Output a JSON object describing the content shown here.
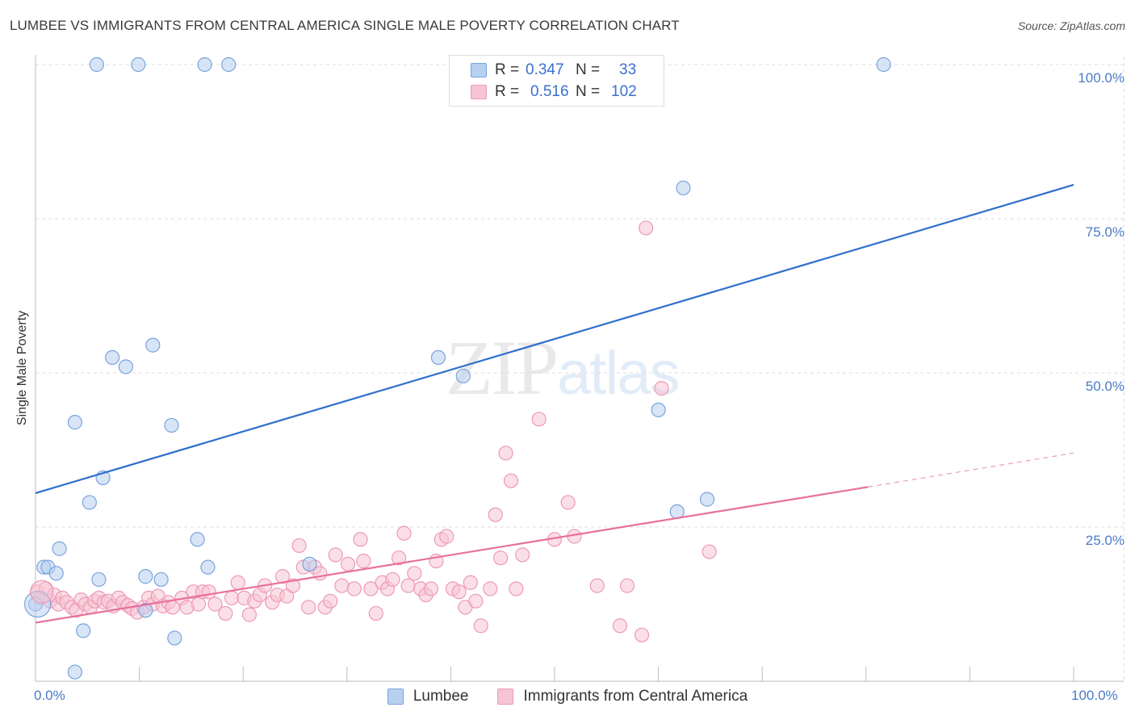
{
  "title": "LUMBEE VS IMMIGRANTS FROM CENTRAL AMERICA SINGLE MALE POVERTY CORRELATION CHART",
  "source": "Source: ZipAtlas.com",
  "watermark": {
    "zip": "ZIP",
    "atlas": "atlas"
  },
  "legend": {
    "r_label": "R =",
    "n_label": "N =",
    "rows": [
      {
        "r": "0.347",
        "n": "33"
      },
      {
        "r": "0.516",
        "n": "102"
      }
    ]
  },
  "colors": {
    "blue_fill": "#b8d0f0",
    "blue_stroke": "#7aa3de",
    "blue_line": "#2f6fcc",
    "pink_fill": "#f7c4d4",
    "pink_stroke": "#ec9ab5",
    "pink_line": "#e8709a",
    "grid": "#dedede",
    "tick_text": "#4a7bc8"
  },
  "chart_data": {
    "type": "scatter",
    "title": "LUMBEE VS IMMIGRANTS FROM CENTRAL AMERICA SINGLE MALE POVERTY CORRELATION CHART",
    "xlabel": "",
    "ylabel": "Single Male Poverty",
    "xlim": [
      0,
      100
    ],
    "ylim": [
      0,
      100
    ],
    "x_ticks": [
      "0.0%",
      "100.0%"
    ],
    "y_ticks": [
      {
        "value": 25,
        "label": "25.0%"
      },
      {
        "value": 50,
        "label": "50.0%"
      },
      {
        "value": 75,
        "label": "75.0%"
      },
      {
        "value": 100,
        "label": "100.0%"
      }
    ],
    "grid": true,
    "legend_position": "top-center",
    "series": [
      {
        "name": "Lumbee",
        "r": 0.347,
        "n": 33,
        "trend": {
          "x": [
            0,
            100
          ],
          "y": [
            30.5,
            80.5
          ]
        },
        "points": [
          [
            0,
            12.5
          ],
          [
            0.8,
            18.5
          ],
          [
            1.2,
            18.5
          ],
          [
            2,
            17.5
          ],
          [
            2.3,
            21.5
          ],
          [
            3.8,
            1.5
          ],
          [
            3.8,
            42
          ],
          [
            4.6,
            8.2
          ],
          [
            5.2,
            29
          ],
          [
            5.9,
            100
          ],
          [
            6.1,
            16.5
          ],
          [
            6.5,
            33
          ],
          [
            7.4,
            52.5
          ],
          [
            8.7,
            51
          ],
          [
            9.9,
            100
          ],
          [
            10.6,
            11.5
          ],
          [
            10.6,
            17
          ],
          [
            11.3,
            54.5
          ],
          [
            12.1,
            16.5
          ],
          [
            13.1,
            41.5
          ],
          [
            13.4,
            7
          ],
          [
            15.6,
            23
          ],
          [
            16.3,
            100
          ],
          [
            16.6,
            18.5
          ],
          [
            18.6,
            100
          ],
          [
            26.4,
            19
          ],
          [
            38.8,
            52.5
          ],
          [
            41.2,
            49.5
          ],
          [
            60.0,
            44
          ],
          [
            61.8,
            27.5
          ],
          [
            62.4,
            80
          ],
          [
            64.7,
            29.5
          ],
          [
            81.7,
            100
          ]
        ]
      },
      {
        "name": "Immigrants from Central America",
        "r": 0.516,
        "n": 102,
        "trend": {
          "x": [
            0,
            80.2
          ],
          "y": [
            9.5,
            31.5
          ]
        },
        "trend_dashed": {
          "x": [
            80.2,
            100
          ],
          "y": [
            31.5,
            37
          ]
        },
        "points": [
          [
            0.2,
            14.5
          ],
          [
            0.5,
            13.5
          ],
          [
            1.0,
            15
          ],
          [
            1.4,
            13
          ],
          [
            1.8,
            14
          ],
          [
            2.2,
            12.5
          ],
          [
            2.6,
            13.5
          ],
          [
            3.0,
            12.8
          ],
          [
            3.5,
            12
          ],
          [
            3.9,
            11.5
          ],
          [
            4.4,
            13.2
          ],
          [
            4.8,
            12.5
          ],
          [
            5.3,
            12
          ],
          [
            5.7,
            13
          ],
          [
            6.1,
            13.5
          ],
          [
            6.6,
            12.8
          ],
          [
            7.0,
            13
          ],
          [
            7.5,
            12.2
          ],
          [
            8.0,
            13.5
          ],
          [
            8.4,
            12.8
          ],
          [
            8.9,
            12.3
          ],
          [
            9.3,
            11.8
          ],
          [
            9.8,
            11.2
          ],
          [
            10.4,
            12
          ],
          [
            10.9,
            13.5
          ],
          [
            11.3,
            12.5
          ],
          [
            11.8,
            13.8
          ],
          [
            12.3,
            12.2
          ],
          [
            12.8,
            12.8
          ],
          [
            13.2,
            12
          ],
          [
            14.1,
            13.5
          ],
          [
            14.6,
            12
          ],
          [
            15.2,
            14.5
          ],
          [
            15.7,
            12.5
          ],
          [
            16.1,
            14.5
          ],
          [
            16.7,
            14.5
          ],
          [
            17.3,
            12.5
          ],
          [
            18.3,
            11
          ],
          [
            18.9,
            13.5
          ],
          [
            19.5,
            16
          ],
          [
            20.1,
            13.5
          ],
          [
            20.6,
            10.8
          ],
          [
            21.1,
            13
          ],
          [
            21.6,
            14
          ],
          [
            22.1,
            15.5
          ],
          [
            22.8,
            12.8
          ],
          [
            23.3,
            14
          ],
          [
            23.8,
            17
          ],
          [
            24.2,
            13.8
          ],
          [
            24.8,
            15.5
          ],
          [
            25.4,
            22
          ],
          [
            25.8,
            18.5
          ],
          [
            26.3,
            12
          ],
          [
            26.9,
            18.5
          ],
          [
            27.4,
            17.5
          ],
          [
            27.9,
            12
          ],
          [
            28.4,
            13
          ],
          [
            28.9,
            20.5
          ],
          [
            29.5,
            15.5
          ],
          [
            30.1,
            19
          ],
          [
            30.7,
            15
          ],
          [
            31.3,
            23
          ],
          [
            31.6,
            19.5
          ],
          [
            32.3,
            15
          ],
          [
            32.8,
            11
          ],
          [
            33.4,
            16
          ],
          [
            33.9,
            15
          ],
          [
            34.4,
            16.5
          ],
          [
            35.0,
            20
          ],
          [
            35.5,
            24
          ],
          [
            35.9,
            15.5
          ],
          [
            36.5,
            17.5
          ],
          [
            37.1,
            15
          ],
          [
            37.6,
            14
          ],
          [
            38.1,
            15
          ],
          [
            38.6,
            19.5
          ],
          [
            39.1,
            23
          ],
          [
            39.6,
            23.5
          ],
          [
            40.2,
            15
          ],
          [
            40.8,
            14.5
          ],
          [
            41.4,
            12
          ],
          [
            41.9,
            16
          ],
          [
            42.4,
            13
          ],
          [
            42.9,
            9
          ],
          [
            43.8,
            15
          ],
          [
            44.3,
            27
          ],
          [
            44.8,
            20
          ],
          [
            45.3,
            37
          ],
          [
            45.8,
            32.5
          ],
          [
            46.3,
            15
          ],
          [
            46.9,
            20.5
          ],
          [
            48.5,
            42.5
          ],
          [
            50.0,
            23
          ],
          [
            51.3,
            29
          ],
          [
            51.9,
            23.5
          ],
          [
            54.1,
            15.5
          ],
          [
            56.3,
            9
          ],
          [
            58.8,
            73.5
          ],
          [
            58.4,
            7.5
          ],
          [
            60.3,
            47.5
          ],
          [
            64.9,
            21
          ],
          [
            57.0,
            15.5
          ]
        ]
      }
    ]
  }
}
